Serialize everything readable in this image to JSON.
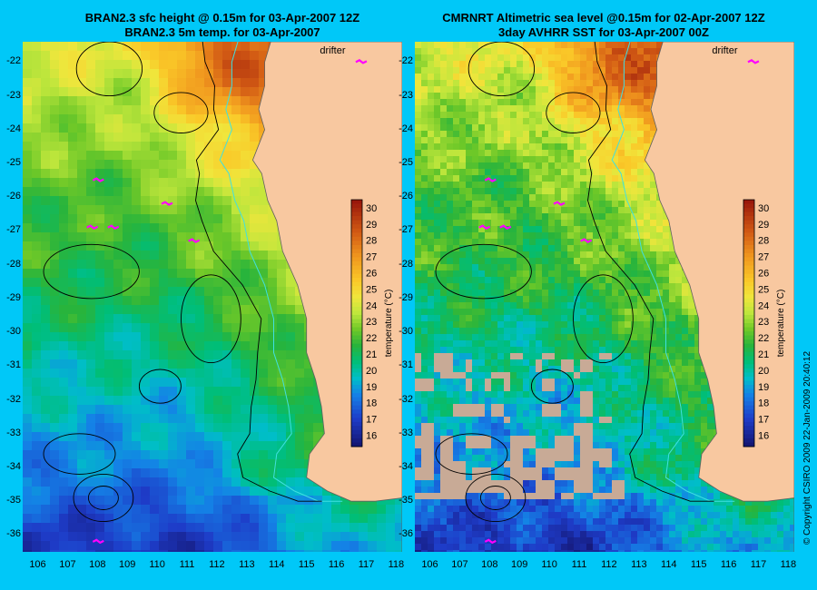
{
  "titles": {
    "left": [
      "BRAN2.3 sfc height @ 0.15m for 03-Apr-2007 12Z",
      "BRAN2.3 5m temp. for 03-Apr-2007"
    ],
    "right": [
      "CMRNRT Altimetric sea level  @0.15m  for 02-Apr-2007 12Z",
      "3day AVHRR SST for 03-Apr-2007 00Z"
    ]
  },
  "labels": {
    "drifter": "drifter",
    "colorbar": "temperature (°C)",
    "copyright": "© Copyright CSIRO 2009   22-Jan-2009 20:40:12"
  },
  "colors": {
    "background": "#00c8f8",
    "land": "#f8c8a0",
    "contour": "#000000",
    "isobath": "#40e0e0",
    "drifter": "#ff00ff"
  },
  "chart_data": {
    "type": "heatmap",
    "xlim": [
      105.5,
      118.2
    ],
    "ylim": [
      -36.5,
      -21.4
    ],
    "x_ticks": [
      106,
      107,
      108,
      109,
      110,
      111,
      112,
      113,
      114,
      115,
      116,
      117,
      118
    ],
    "y_ticks": [
      -22,
      -23,
      -24,
      -25,
      -26,
      -27,
      -28,
      -29,
      -30,
      -31,
      -32,
      -33,
      -34,
      -35,
      -36
    ],
    "colorbar": {
      "min": 15.3,
      "max": 30.5,
      "ticks": [
        16,
        17,
        18,
        19,
        20,
        21,
        22,
        23,
        24,
        25,
        26,
        27,
        28,
        29,
        30
      ]
    },
    "coastline": [
      [
        113.8,
        -21.4
      ],
      [
        113.6,
        -22.0
      ],
      [
        113.6,
        -22.7
      ],
      [
        113.4,
        -23.4
      ],
      [
        113.6,
        -24.0
      ],
      [
        113.2,
        -24.9
      ],
      [
        113.5,
        -25.3
      ],
      [
        113.7,
        -26.1
      ],
      [
        114.0,
        -26.7
      ],
      [
        114.2,
        -27.6
      ],
      [
        114.7,
        -28.6
      ],
      [
        115.0,
        -29.6
      ],
      [
        115.0,
        -30.6
      ],
      [
        115.3,
        -31.4
      ],
      [
        115.5,
        -32.2
      ],
      [
        115.6,
        -33.0
      ],
      [
        115.1,
        -33.6
      ],
      [
        115.0,
        -34.3
      ],
      [
        115.7,
        -34.7
      ],
      [
        116.5,
        -35.0
      ],
      [
        117.3,
        -35.0
      ],
      [
        118.2,
        -34.9
      ]
    ],
    "drifters": [
      [
        116.8,
        -22.0
      ],
      [
        108.0,
        -25.5
      ],
      [
        107.8,
        -26.9
      ],
      [
        108.5,
        -26.9
      ],
      [
        110.3,
        -26.2
      ],
      [
        111.2,
        -27.3
      ],
      [
        108.0,
        -36.2
      ]
    ],
    "temperature_field": {
      "north_warm_core": {
        "lon": 112.7,
        "lat": -21.8,
        "temp": 28.5
      },
      "gradient": [
        {
          "lat": -22,
          "offshore": 24.0,
          "coastal": 28.0
        },
        {
          "lat": -24,
          "offshore": 23.0,
          "coastal": 26.0
        },
        {
          "lat": -26,
          "offshore": 22.0,
          "coastal": 24.0
        },
        {
          "lat": -28,
          "offshore": 21.5,
          "coastal": 23.0
        },
        {
          "lat": -30,
          "offshore": 20.5,
          "coastal": 22.5
        },
        {
          "lat": -32,
          "offshore": 19.5,
          "coastal": 21.5
        },
        {
          "lat": -34,
          "offshore": 18.5,
          "coastal": 21.0
        },
        {
          "lat": -36,
          "offshore": 17.0,
          "coastal": 19.5
        }
      ]
    }
  }
}
